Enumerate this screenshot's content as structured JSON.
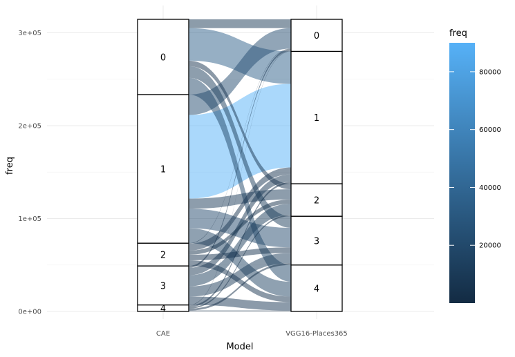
{
  "chart_data": {
    "type": "alluvial",
    "xlabel": "Model",
    "ylabel": "freq",
    "axes": [
      "CAE",
      "VGG16-Places365"
    ],
    "ylim": [
      0,
      320000
    ],
    "y_ticks": [
      {
        "value": 0,
        "label": "0e+00"
      },
      {
        "value": 100000,
        "label": "1e+05"
      },
      {
        "value": 200000,
        "label": "2e+05"
      },
      {
        "value": 300000,
        "label": "3e+05"
      }
    ],
    "grid": true,
    "strata": {
      "CAE": [
        {
          "label": "4",
          "size": 7000
        },
        {
          "label": "3",
          "size": 42000
        },
        {
          "label": "2",
          "size": 24500
        },
        {
          "label": "1",
          "size": 160000
        },
        {
          "label": "0",
          "size": 81000
        }
      ],
      "VGG16-Places365": [
        {
          "label": "4",
          "size": 50000
        },
        {
          "label": "3",
          "size": 52500
        },
        {
          "label": "2",
          "size": 35000
        },
        {
          "label": "1",
          "size": 142500
        },
        {
          "label": "0",
          "size": 34500
        }
      ]
    },
    "flows": [
      {
        "from": "4",
        "to": "4",
        "freq": 1000
      },
      {
        "from": "4",
        "to": "3",
        "freq": 2000
      },
      {
        "from": "4",
        "to": "2",
        "freq": 1500
      },
      {
        "from": "4",
        "to": "1",
        "freq": 2000
      },
      {
        "from": "4",
        "to": "0",
        "freq": 500
      },
      {
        "from": "3",
        "to": "4",
        "freq": 9000
      },
      {
        "from": "3",
        "to": "3",
        "freq": 11000
      },
      {
        "from": "3",
        "to": "2",
        "freq": 12000
      },
      {
        "from": "3",
        "to": "1",
        "freq": 8000
      },
      {
        "from": "3",
        "to": "0",
        "freq": 2000
      },
      {
        "from": "2",
        "to": "4",
        "freq": 6000
      },
      {
        "from": "2",
        "to": "3",
        "freq": 6000
      },
      {
        "from": "2",
        "to": "2",
        "freq": 4500
      },
      {
        "from": "2",
        "to": "1",
        "freq": 7500
      },
      {
        "from": "2",
        "to": "0",
        "freq": 500
      },
      {
        "from": "1",
        "to": "4",
        "freq": 16000
      },
      {
        "from": "1",
        "to": "3",
        "freq": 21000
      },
      {
        "from": "1",
        "to": "2",
        "freq": 11000
      },
      {
        "from": "1",
        "to": "1",
        "freq": 90000
      },
      {
        "from": "1",
        "to": "0",
        "freq": 22000
      },
      {
        "from": "0",
        "to": "4",
        "freq": 18000
      },
      {
        "from": "0",
        "to": "3",
        "freq": 12500
      },
      {
        "from": "0",
        "to": "2",
        "freq": 6000
      },
      {
        "from": "0",
        "to": "1",
        "freq": 35000
      },
      {
        "from": "0",
        "to": "0",
        "freq": 9500
      }
    ],
    "legend": {
      "title": "freq",
      "placement": "right",
      "range": [
        0,
        90000
      ],
      "ticks": [
        {
          "value": 20000,
          "label": "20000"
        },
        {
          "value": 40000,
          "label": "40000"
        },
        {
          "value": 60000,
          "label": "60000"
        },
        {
          "value": 80000,
          "label": "80000"
        }
      ],
      "color_low": "#132B43",
      "color_high": "#56B1F7"
    }
  }
}
